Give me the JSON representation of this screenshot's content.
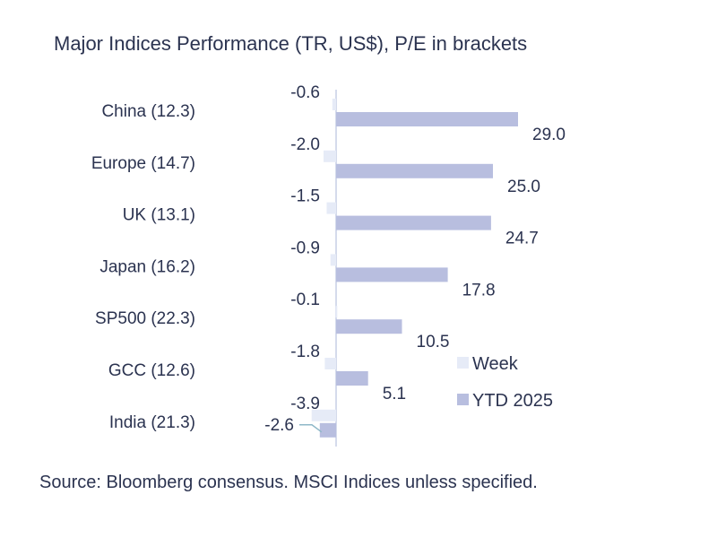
{
  "chart_data": {
    "type": "bar",
    "orientation": "horizontal",
    "title": "Major Indices Performance (TR, US$), P/E in brackets",
    "source": "Source: Bloomberg consensus. MSCI Indices unless specified.",
    "categories": [
      "China (12.3)",
      "Europe (14.7)",
      "UK (13.1)",
      "Japan (16.2)",
      "SP500 (22.3)",
      "GCC (12.6)",
      "India (21.3)"
    ],
    "series": [
      {
        "name": "Week",
        "color": "#e6ebf7",
        "values": [
          -0.6,
          -2.0,
          -1.5,
          -0.9,
          -0.1,
          -1.8,
          -3.9
        ],
        "labels": [
          "-0.6",
          "-2.0",
          "-1.5",
          "-0.9",
          "-0.1",
          "-1.8",
          "-3.9"
        ]
      },
      {
        "name": "YTD 2025",
        "color": "#b8bedf",
        "values": [
          29.0,
          25.0,
          24.7,
          17.8,
          10.5,
          5.1,
          -2.6
        ],
        "labels": [
          "29.0",
          "25.0",
          "24.7",
          "17.8",
          "10.5",
          "5.1",
          "-2.6"
        ]
      }
    ],
    "legend_position": "right",
    "axis_color": "#d5dbec"
  }
}
